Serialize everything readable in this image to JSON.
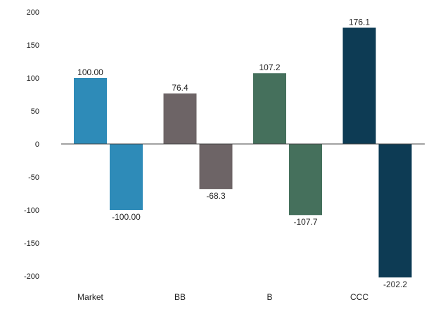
{
  "chart_data": {
    "type": "bar",
    "title": "",
    "xlabel": "",
    "ylabel": "",
    "ylim": [
      -200,
      200
    ],
    "yticks": [
      200,
      150,
      100,
      50,
      0,
      -50,
      -100,
      -150,
      -200
    ],
    "ytick_labels": [
      "200",
      "150",
      "100",
      "50",
      "0",
      "-50",
      "-100",
      "-150",
      "-200"
    ],
    "grid": false,
    "legend": "none",
    "categories": [
      "Market",
      "BB",
      "B",
      "CCC"
    ],
    "colors": [
      "#2e8bb8",
      "#6d6466",
      "#45705c",
      "#0d3b54"
    ],
    "series": [
      {
        "values": [
          100.0,
          76.4,
          107.2,
          176.1
        ],
        "labels": [
          "100.00",
          "76.4",
          "107.2",
          "176.1"
        ]
      },
      {
        "values": [
          -100.0,
          -68.3,
          -107.7,
          -202.2
        ],
        "labels": [
          "-100.00",
          "-68.3",
          "-107.7",
          "-202.2"
        ]
      }
    ]
  }
}
